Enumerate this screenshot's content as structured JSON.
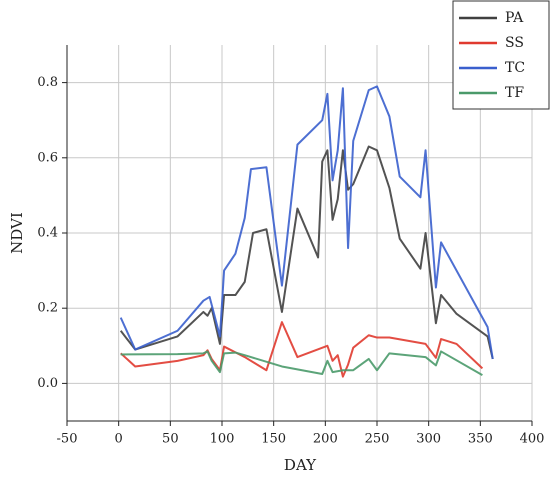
{
  "chart_data": {
    "type": "line",
    "xlabel": "DAY",
    "ylabel": "NDVI",
    "xlim": [
      -50,
      400
    ],
    "xticks": [
      -50,
      0,
      50,
      100,
      150,
      200,
      250,
      300,
      350,
      400
    ],
    "ylim": [
      -0.1,
      0.9
    ],
    "yticks": [
      {
        "value": 0,
        "label": "0.0"
      },
      0.2,
      0.4,
      0.6,
      0.8
    ],
    "grid": true,
    "legend": "top-right",
    "series": [
      {
        "name": "PA",
        "color": "#404040",
        "x": [
          2,
          16,
          57,
          82,
          86,
          90,
          98,
          102,
          113,
          122,
          130,
          143,
          158,
          173,
          193,
          197,
          202,
          207,
          212,
          217,
          222,
          227,
          242,
          250,
          262,
          272,
          292,
          297,
          307,
          312,
          327,
          357,
          362
        ],
        "values": [
          0.14,
          0.09,
          0.125,
          0.19,
          0.18,
          0.2,
          0.105,
          0.235,
          0.235,
          0.27,
          0.4,
          0.41,
          0.19,
          0.465,
          0.335,
          0.59,
          0.62,
          0.435,
          0.49,
          0.62,
          0.515,
          0.53,
          0.63,
          0.62,
          0.52,
          0.385,
          0.305,
          0.4,
          0.16,
          0.235,
          0.185,
          0.125,
          0.065
        ]
      },
      {
        "name": "SS",
        "color": "#e03a2f",
        "x": [
          2,
          16,
          57,
          82,
          86,
          90,
          98,
          102,
          122,
          143,
          158,
          173,
          202,
          207,
          212,
          217,
          222,
          227,
          242,
          250,
          262,
          297,
          307,
          312,
          327,
          352
        ],
        "values": [
          0.08,
          0.045,
          0.06,
          0.075,
          0.088,
          0.065,
          0.035,
          0.098,
          0.07,
          0.035,
          0.163,
          0.07,
          0.1,
          0.06,
          0.075,
          0.018,
          0.05,
          0.095,
          0.128,
          0.122,
          0.122,
          0.105,
          0.068,
          0.118,
          0.105,
          0.04
        ]
      },
      {
        "name": "TC",
        "color": "#3a5fcd",
        "x": [
          2,
          16,
          20,
          57,
          82,
          88,
          98,
          102,
          113,
          122,
          128,
          143,
          158,
          173,
          197,
          202,
          207,
          212,
          217,
          222,
          227,
          242,
          250,
          262,
          272,
          292,
          297,
          307,
          312,
          357,
          362
        ],
        "values": [
          0.175,
          0.09,
          0.095,
          0.14,
          0.22,
          0.23,
          0.125,
          0.3,
          0.345,
          0.44,
          0.57,
          0.575,
          0.26,
          0.635,
          0.7,
          0.77,
          0.54,
          0.62,
          0.785,
          0.36,
          0.645,
          0.78,
          0.79,
          0.71,
          0.55,
          0.495,
          0.62,
          0.255,
          0.375,
          0.15,
          0.065
        ]
      },
      {
        "name": "TF",
        "color": "#4a9a6a",
        "x": [
          2,
          57,
          82,
          86,
          90,
          98,
          102,
          113,
          122,
          158,
          197,
          202,
          207,
          217,
          227,
          242,
          250,
          262,
          297,
          307,
          312,
          352
        ],
        "values": [
          0.077,
          0.078,
          0.08,
          0.085,
          0.06,
          0.03,
          0.08,
          0.082,
          0.075,
          0.045,
          0.025,
          0.06,
          0.03,
          0.035,
          0.035,
          0.065,
          0.035,
          0.08,
          0.07,
          0.048,
          0.085,
          0.022
        ]
      }
    ]
  }
}
